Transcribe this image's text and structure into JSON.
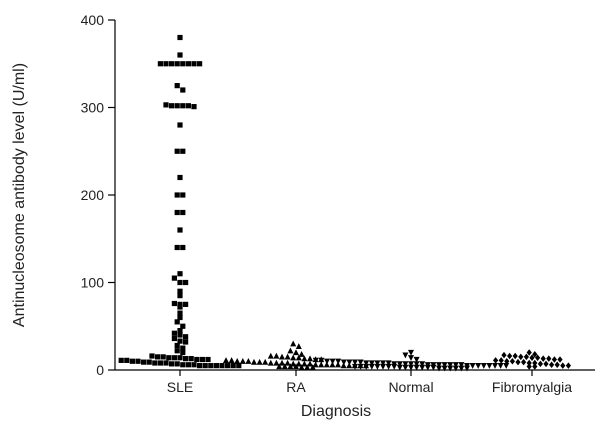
{
  "chart_data": {
    "type": "scatter",
    "title": "",
    "xlabel": "Diagnosis",
    "ylabel": "Antinucleosome antibody level (U/ml)",
    "ylim": [
      0,
      400
    ],
    "yticks": [
      0,
      100,
      200,
      300,
      400
    ],
    "grid": false,
    "categories": [
      "SLE",
      "RA",
      "Normal",
      "Fibromyalgia"
    ],
    "series": [
      {
        "category": "SLE",
        "marker": "square",
        "values": [
          380,
          360,
          350,
          350,
          350,
          350,
          350,
          350,
          350,
          350,
          325,
          320,
          303,
          302,
          302,
          302,
          302,
          301,
          280,
          250,
          250,
          220,
          200,
          200,
          180,
          180,
          160,
          140,
          140,
          110,
          105,
          100,
          100,
          90,
          85,
          76,
          75,
          75,
          72,
          65,
          60,
          55,
          50,
          45,
          42,
          40,
          38,
          36,
          33,
          32,
          28,
          25,
          22,
          20,
          16,
          15,
          15,
          14,
          14,
          14,
          13,
          13,
          12,
          12,
          12,
          11,
          11,
          10,
          10,
          9,
          9,
          8,
          8,
          8,
          7,
          7,
          6,
          6,
          6,
          5,
          5,
          5,
          5,
          5,
          5,
          5,
          5
        ]
      },
      {
        "category": "RA",
        "marker": "triangle-up",
        "values": [
          30,
          27,
          22,
          20,
          18,
          16,
          16,
          15,
          15,
          14,
          14,
          13,
          13,
          12,
          12,
          11,
          11,
          10,
          10,
          10,
          9,
          9,
          9,
          8,
          8,
          8,
          8,
          7,
          7,
          7,
          7,
          6,
          6,
          6,
          6,
          6,
          5,
          5,
          5,
          5,
          5,
          4,
          4,
          4,
          4,
          3,
          3,
          3
        ]
      },
      {
        "category": "Normal",
        "marker": "triangle-down",
        "values": [
          20,
          17,
          14,
          12,
          11,
          11,
          10,
          10,
          10,
          9,
          9,
          9,
          9,
          8,
          8,
          8,
          8,
          8,
          7,
          7,
          7,
          7,
          7,
          7,
          6,
          6,
          6,
          6,
          6,
          6,
          6,
          5,
          5,
          5,
          5,
          5,
          5,
          5,
          5,
          4,
          4,
          4,
          4,
          4,
          4,
          4,
          4,
          3,
          3,
          3,
          3,
          3,
          3,
          3,
          2,
          2,
          2,
          2,
          2,
          2
        ]
      },
      {
        "category": "Fibromyalgia",
        "marker": "diamond",
        "values": [
          20,
          18,
          17,
          16,
          16,
          15,
          15,
          14,
          14,
          13,
          13,
          12,
          12,
          11,
          11,
          10,
          10,
          9,
          9,
          8,
          8,
          7,
          7,
          6,
          6,
          5,
          5,
          4,
          4
        ]
      }
    ]
  }
}
